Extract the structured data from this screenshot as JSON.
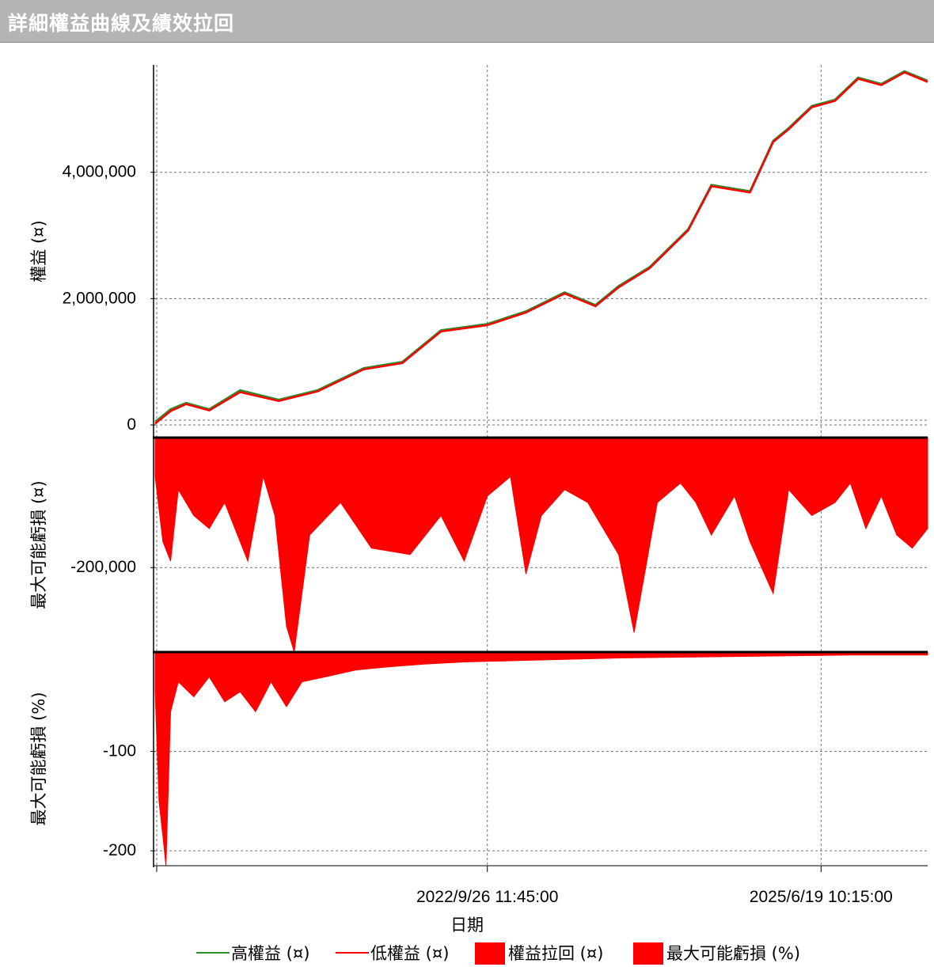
{
  "window": {
    "title": "詳細權益曲線及績效拉回"
  },
  "colors": {
    "high": "#2e8b2e",
    "low": "#ff0000",
    "fill": "#ff0000",
    "grid": "#707070",
    "axis": "#000000"
  },
  "chart_data": [
    {
      "id": "equity",
      "type": "line",
      "ylabel": "權益 (¤)",
      "ylim": [
        -200000,
        5700000
      ],
      "yticks": [
        0,
        2000000,
        4000000
      ],
      "ytick_labels": [
        "0",
        "2,000,000",
        "4,000,000"
      ],
      "x": [
        0,
        0.02,
        0.04,
        0.07,
        0.11,
        0.16,
        0.21,
        0.27,
        0.32,
        0.37,
        0.43,
        0.48,
        0.53,
        0.57,
        0.6,
        0.64,
        0.69,
        0.72,
        0.77,
        0.8,
        0.82,
        0.85,
        0.88,
        0.91,
        0.94,
        0.97,
        1.0
      ],
      "series": [
        {
          "name": "高權益 (¤)",
          "values": [
            50000,
            250000,
            350000,
            250000,
            550000,
            400000,
            550000,
            900000,
            1000000,
            1500000,
            1600000,
            1800000,
            2100000,
            1900000,
            2200000,
            2500000,
            3100000,
            3800000,
            3700000,
            4500000,
            4700000,
            5050000,
            5150000,
            5500000,
            5400000,
            5600000,
            5450000
          ]
        },
        {
          "name": "低權益 (¤)",
          "values": [
            20000,
            220000,
            330000,
            230000,
            520000,
            380000,
            530000,
            880000,
            980000,
            1480000,
            1580000,
            1780000,
            2080000,
            1880000,
            2180000,
            2480000,
            3080000,
            3780000,
            3680000,
            4480000,
            4680000,
            5030000,
            5130000,
            5480000,
            5380000,
            5580000,
            5430000
          ]
        }
      ]
    },
    {
      "id": "drawdown",
      "type": "area",
      "ylabel": "最大可能虧損 (¤)",
      "ylim": [
        -330000,
        0
      ],
      "yticks": [
        -200000
      ],
      "ytick_labels": [
        "-200,000"
      ],
      "series": [
        {
          "name": "權益拉回 (¤)",
          "x": [
            0,
            0.01,
            0.02,
            0.03,
            0.05,
            0.07,
            0.09,
            0.12,
            0.14,
            0.155,
            0.17,
            0.18,
            0.2,
            0.24,
            0.28,
            0.33,
            0.37,
            0.4,
            0.43,
            0.46,
            0.48,
            0.5,
            0.53,
            0.56,
            0.58,
            0.6,
            0.62,
            0.65,
            0.68,
            0.7,
            0.72,
            0.75,
            0.77,
            0.8,
            0.82,
            0.85,
            0.88,
            0.9,
            0.92,
            0.94,
            0.96,
            0.98,
            1.0
          ],
          "values": [
            -60000,
            -160000,
            -190000,
            -80000,
            -120000,
            -140000,
            -100000,
            -190000,
            -60000,
            -120000,
            -290000,
            -330000,
            -150000,
            -100000,
            -170000,
            -180000,
            -120000,
            -190000,
            -90000,
            -60000,
            -210000,
            -120000,
            -80000,
            -100000,
            -140000,
            -180000,
            -300000,
            -100000,
            -70000,
            -100000,
            -150000,
            -90000,
            -160000,
            -240000,
            -80000,
            -120000,
            -100000,
            -70000,
            -140000,
            -90000,
            -150000,
            -170000,
            -140000
          ]
        }
      ]
    },
    {
      "id": "drawdown-pct",
      "type": "area",
      "ylabel": "最大可能虧損 (%)",
      "xlabel": "日期",
      "ylim": [
        -215,
        0
      ],
      "yticks": [
        -100,
        -200
      ],
      "ytick_labels": [
        "-100",
        "-200"
      ],
      "xticks": [
        0.43,
        0.862
      ],
      "xtick_labels": [
        "2022/9/26 11:45:00",
        "2025/6/19 10:15:00"
      ],
      "series": [
        {
          "name": "最大可能虧損 (%)",
          "x": [
            0,
            0.005,
            0.01,
            0.014,
            0.02,
            0.03,
            0.05,
            0.07,
            0.09,
            0.11,
            0.13,
            0.15,
            0.17,
            0.19,
            0.22,
            0.26,
            0.3,
            0.35,
            0.4,
            0.45,
            0.5,
            0.6,
            0.7,
            0.8,
            0.9,
            1.0
          ],
          "values": [
            -40,
            -150,
            -185,
            -215,
            -60,
            -30,
            -45,
            -25,
            -50,
            -40,
            -60,
            -30,
            -55,
            -30,
            -25,
            -18,
            -15,
            -12,
            -10,
            -9,
            -8,
            -6,
            -5,
            -4,
            -3,
            -3
          ]
        }
      ]
    }
  ],
  "legend": [
    {
      "label": "高權益 (¤)",
      "kind": "line",
      "color": "#2e8b2e"
    },
    {
      "label": "低權益 (¤)",
      "kind": "line",
      "color": "#ff0000"
    },
    {
      "label": "權益拉回 (¤)",
      "kind": "box",
      "color": "#ff0000"
    },
    {
      "label": "最大可能虧損 (%)",
      "kind": "box",
      "color": "#ff0000"
    }
  ]
}
